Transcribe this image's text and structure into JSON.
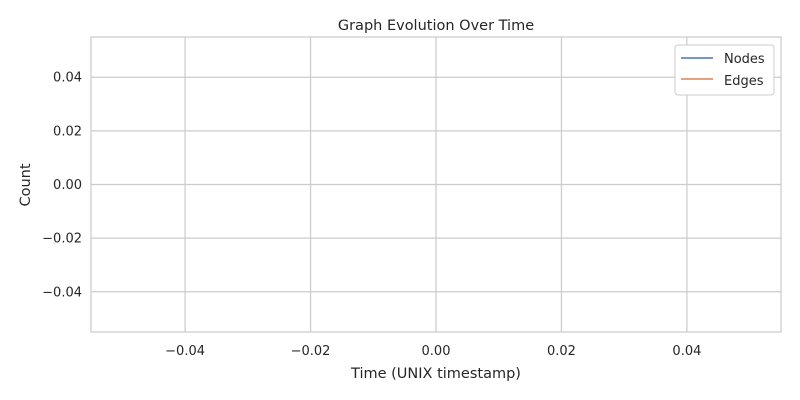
{
  "chart_data": {
    "type": "line",
    "title": "Graph Evolution Over Time",
    "xlabel": "Time (UNIX timestamp)",
    "ylabel": "Count",
    "xlim": [
      -0.055,
      0.055
    ],
    "ylim": [
      -0.055,
      0.055
    ],
    "x_ticks": [
      -0.04,
      -0.02,
      0.0,
      0.02,
      0.04
    ],
    "x_tick_labels": [
      "−0.04",
      "−0.02",
      "0.00",
      "0.02",
      "0.04"
    ],
    "y_ticks": [
      -0.04,
      -0.02,
      0.0,
      0.02,
      0.04
    ],
    "y_tick_labels": [
      "−0.04",
      "−0.02",
      "0.00",
      "0.02",
      "0.04"
    ],
    "grid": true,
    "legend_position": "top-right",
    "series": [
      {
        "name": "Nodes",
        "color": "#4c72b0",
        "x": [],
        "y": []
      },
      {
        "name": "Edges",
        "color": "#dd8452",
        "x": [],
        "y": []
      }
    ]
  }
}
